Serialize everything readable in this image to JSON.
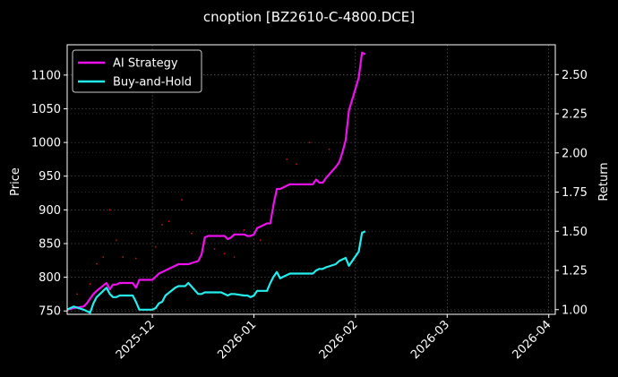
{
  "chart_data": {
    "type": "line",
    "title": "cnoption [BZ2610-C-4800.DCE]",
    "xlabel": "",
    "ylabel": "Price",
    "ylabel_right": "Return",
    "x_ticks": [
      "2025-12",
      "2026-01",
      "2026-02",
      "2026-03",
      "2026-04"
    ],
    "x_range": [
      "2025-11-05",
      "2026-04-03"
    ],
    "y_left_ticks": [
      750,
      800,
      850,
      900,
      950,
      1000,
      1050,
      1100
    ],
    "y_left_range": [
      745,
      1145
    ],
    "y_right_ticks": [
      1.0,
      1.25,
      1.5,
      1.75,
      2.0,
      2.25,
      2.5
    ],
    "y_right_tick_labels": [
      "1.00",
      "1.25",
      "1.50",
      "1.75",
      "2.00",
      "2.25",
      "2.50"
    ],
    "y_right_range": [
      0.97,
      2.69
    ],
    "grid": true,
    "legend_position": "top-left",
    "background": "#000000",
    "grid_color": "#555555",
    "series": [
      {
        "name": "AI Strategy",
        "axis": "right",
        "color": "#ee11ee",
        "points": [
          [
            "2025-11-05",
            1.0
          ],
          [
            "2025-11-07",
            1.01
          ],
          [
            "2025-11-10",
            1.02
          ],
          [
            "2025-11-11",
            1.04
          ],
          [
            "2025-11-12",
            1.07
          ],
          [
            "2025-11-13",
            1.1
          ],
          [
            "2025-11-14",
            1.12
          ],
          [
            "2025-11-17",
            1.17
          ],
          [
            "2025-11-18",
            1.13
          ],
          [
            "2025-11-19",
            1.16
          ],
          [
            "2025-11-20",
            1.16
          ],
          [
            "2025-11-21",
            1.17
          ],
          [
            "2025-11-24",
            1.17
          ],
          [
            "2025-11-25",
            1.17
          ],
          [
            "2025-11-26",
            1.14
          ],
          [
            "2025-11-27",
            1.19
          ],
          [
            "2025-11-28",
            1.19
          ],
          [
            "2025-12-01",
            1.19
          ],
          [
            "2025-12-02",
            1.21
          ],
          [
            "2025-12-03",
            1.23
          ],
          [
            "2025-12-04",
            1.24
          ],
          [
            "2025-12-05",
            1.25
          ],
          [
            "2025-12-08",
            1.28
          ],
          [
            "2025-12-09",
            1.29
          ],
          [
            "2025-12-10",
            1.29
          ],
          [
            "2025-12-11",
            1.29
          ],
          [
            "2025-12-12",
            1.29
          ],
          [
            "2025-12-15",
            1.31
          ],
          [
            "2025-12-16",
            1.35
          ],
          [
            "2025-12-17",
            1.46
          ],
          [
            "2025-12-18",
            1.47
          ],
          [
            "2025-12-19",
            1.47
          ],
          [
            "2025-12-22",
            1.47
          ],
          [
            "2025-12-23",
            1.47
          ],
          [
            "2025-12-24",
            1.45
          ],
          [
            "2025-12-25",
            1.46
          ],
          [
            "2025-12-26",
            1.48
          ],
          [
            "2025-12-29",
            1.48
          ],
          [
            "2025-12-30",
            1.47
          ],
          [
            "2025-12-31",
            1.47
          ],
          [
            "2026-01-01",
            1.48
          ],
          [
            "2026-01-02",
            1.52
          ],
          [
            "2026-01-05",
            1.55
          ],
          [
            "2026-01-06",
            1.55
          ],
          [
            "2026-01-07",
            1.67
          ],
          [
            "2026-01-08",
            1.77
          ],
          [
            "2026-01-09",
            1.77
          ],
          [
            "2026-01-12",
            1.8
          ],
          [
            "2026-01-13",
            1.8
          ],
          [
            "2026-01-14",
            1.8
          ],
          [
            "2026-01-15",
            1.8
          ],
          [
            "2026-01-16",
            1.8
          ],
          [
            "2026-01-19",
            1.8
          ],
          [
            "2026-01-20",
            1.83
          ],
          [
            "2026-01-21",
            1.81
          ],
          [
            "2026-01-22",
            1.81
          ],
          [
            "2026-01-23",
            1.84
          ],
          [
            "2026-01-26",
            1.91
          ],
          [
            "2026-01-27",
            1.94
          ],
          [
            "2026-01-28",
            2.0
          ],
          [
            "2026-01-29",
            2.08
          ],
          [
            "2026-01-30",
            2.27
          ],
          [
            "2026-02-02",
            2.48
          ],
          [
            "2026-02-03",
            2.64
          ],
          [
            "2026-02-04",
            2.63
          ]
        ]
      },
      {
        "name": "Buy-and-Hold",
        "axis": "right",
        "color": "#22eeee",
        "points": [
          [
            "2025-11-05",
            1.0
          ],
          [
            "2025-11-07",
            1.02
          ],
          [
            "2025-11-10",
            1.0
          ],
          [
            "2025-11-11",
            0.99
          ],
          [
            "2025-11-12",
            0.98
          ],
          [
            "2025-11-13",
            1.04
          ],
          [
            "2025-11-14",
            1.08
          ],
          [
            "2025-11-17",
            1.14
          ],
          [
            "2025-11-18",
            1.1
          ],
          [
            "2025-11-19",
            1.08
          ],
          [
            "2025-11-20",
            1.08
          ],
          [
            "2025-11-21",
            1.09
          ],
          [
            "2025-11-24",
            1.09
          ],
          [
            "2025-11-25",
            1.09
          ],
          [
            "2025-11-26",
            1.05
          ],
          [
            "2025-11-27",
            1.0
          ],
          [
            "2025-11-28",
            1.0
          ],
          [
            "2025-12-01",
            1.0
          ],
          [
            "2025-12-02",
            1.01
          ],
          [
            "2025-12-03",
            1.04
          ],
          [
            "2025-12-04",
            1.05
          ],
          [
            "2025-12-05",
            1.09
          ],
          [
            "2025-12-08",
            1.14
          ],
          [
            "2025-12-09",
            1.15
          ],
          [
            "2025-12-10",
            1.15
          ],
          [
            "2025-12-11",
            1.15
          ],
          [
            "2025-12-12",
            1.17
          ],
          [
            "2025-12-15",
            1.1
          ],
          [
            "2025-12-16",
            1.1
          ],
          [
            "2025-12-17",
            1.11
          ],
          [
            "2025-12-18",
            1.11
          ],
          [
            "2025-12-19",
            1.11
          ],
          [
            "2025-12-22",
            1.11
          ],
          [
            "2025-12-23",
            1.1
          ],
          [
            "2025-12-24",
            1.09
          ],
          [
            "2025-12-25",
            1.1
          ],
          [
            "2025-12-26",
            1.1
          ],
          [
            "2025-12-29",
            1.09
          ],
          [
            "2025-12-30",
            1.09
          ],
          [
            "2025-12-31",
            1.08
          ],
          [
            "2026-01-01",
            1.09
          ],
          [
            "2026-01-02",
            1.12
          ],
          [
            "2026-01-05",
            1.12
          ],
          [
            "2026-01-06",
            1.17
          ],
          [
            "2026-01-07",
            1.21
          ],
          [
            "2026-01-08",
            1.24
          ],
          [
            "2026-01-09",
            1.2
          ],
          [
            "2026-01-12",
            1.23
          ],
          [
            "2026-01-13",
            1.23
          ],
          [
            "2026-01-14",
            1.23
          ],
          [
            "2026-01-15",
            1.23
          ],
          [
            "2026-01-16",
            1.23
          ],
          [
            "2026-01-19",
            1.23
          ],
          [
            "2026-01-20",
            1.25
          ],
          [
            "2026-01-21",
            1.26
          ],
          [
            "2026-01-22",
            1.26
          ],
          [
            "2026-01-23",
            1.27
          ],
          [
            "2026-01-26",
            1.29
          ],
          [
            "2026-01-27",
            1.31
          ],
          [
            "2026-01-28",
            1.32
          ],
          [
            "2026-01-29",
            1.33
          ],
          [
            "2026-01-30",
            1.28
          ],
          [
            "2026-02-02",
            1.37
          ],
          [
            "2026-02-03",
            1.49
          ],
          [
            "2026-02-04",
            1.5
          ]
        ]
      }
    ],
    "scatter": {
      "axis": "left",
      "color": "#cc1111",
      "points": [
        [
          "2025-11-08",
          775
        ],
        [
          "2025-11-12",
          790
        ],
        [
          "2025-11-14",
          820
        ],
        [
          "2025-11-16",
          830
        ],
        [
          "2025-11-18",
          900
        ],
        [
          "2025-11-20",
          855
        ],
        [
          "2025-11-22",
          830
        ],
        [
          "2025-11-26",
          828
        ],
        [
          "2025-12-02",
          845
        ],
        [
          "2025-12-04",
          878
        ],
        [
          "2025-12-06",
          883
        ],
        [
          "2025-12-10",
          915
        ],
        [
          "2025-12-13",
          865
        ],
        [
          "2025-12-17",
          850
        ],
        [
          "2025-12-20",
          842
        ],
        [
          "2025-12-23",
          835
        ],
        [
          "2025-12-26",
          830
        ],
        [
          "2025-12-29",
          870
        ],
        [
          "2026-01-03",
          855
        ],
        [
          "2026-01-07",
          905
        ],
        [
          "2026-01-11",
          975
        ],
        [
          "2026-01-14",
          968
        ],
        [
          "2026-01-18",
          1000
        ],
        [
          "2026-01-24",
          990
        ]
      ]
    }
  }
}
